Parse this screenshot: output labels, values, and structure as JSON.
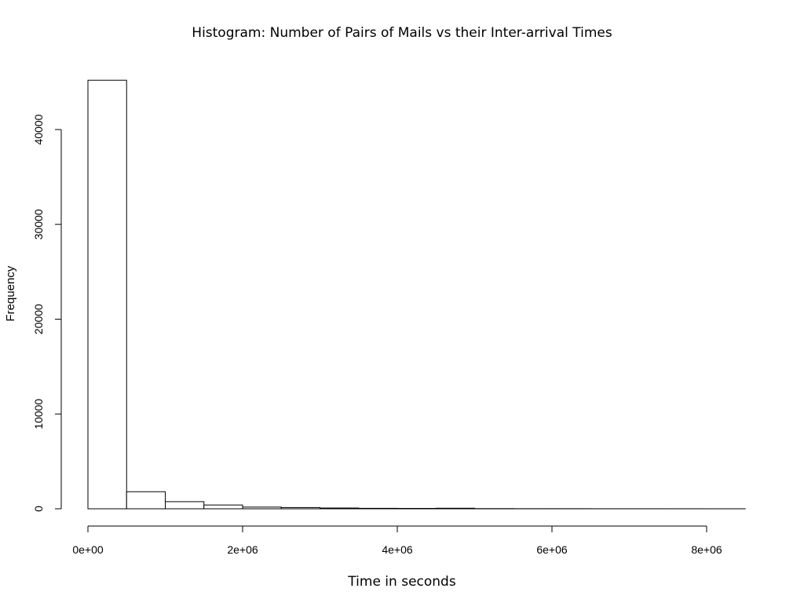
{
  "chart_data": {
    "type": "bar",
    "title": "Histogram: Number of Pairs of Mails vs their Inter-arrival Times",
    "xlabel": "Time in seconds",
    "ylabel": "Frequency",
    "xlim": [
      0,
      8500000
    ],
    "ylim": [
      0,
      45200
    ],
    "bin_width": 500000,
    "bins": [
      {
        "start": 0,
        "end": 500000,
        "count": 45200
      },
      {
        "start": 500000,
        "end": 1000000,
        "count": 1800
      },
      {
        "start": 1000000,
        "end": 1500000,
        "count": 750
      },
      {
        "start": 1500000,
        "end": 2000000,
        "count": 400
      },
      {
        "start": 2000000,
        "end": 2500000,
        "count": 180
      },
      {
        "start": 2500000,
        "end": 3000000,
        "count": 130
      },
      {
        "start": 3000000,
        "end": 3500000,
        "count": 80
      },
      {
        "start": 3500000,
        "end": 4000000,
        "count": 50
      },
      {
        "start": 4000000,
        "end": 4500000,
        "count": 40
      },
      {
        "start": 4500000,
        "end": 5000000,
        "count": 60
      },
      {
        "start": 5000000,
        "end": 5500000,
        "count": 20
      },
      {
        "start": 5500000,
        "end": 6000000,
        "count": 10
      },
      {
        "start": 6000000,
        "end": 6500000,
        "count": 10
      },
      {
        "start": 6500000,
        "end": 7000000,
        "count": 5
      },
      {
        "start": 7000000,
        "end": 7500000,
        "count": 5
      },
      {
        "start": 7500000,
        "end": 8000000,
        "count": 3
      },
      {
        "start": 8000000,
        "end": 8500000,
        "count": 2
      }
    ],
    "x_ticks": [
      {
        "value": 0,
        "label": "0e+00"
      },
      {
        "value": 2000000,
        "label": "2e+06"
      },
      {
        "value": 4000000,
        "label": "4e+06"
      },
      {
        "value": 6000000,
        "label": "6e+06"
      },
      {
        "value": 8000000,
        "label": "8e+06"
      }
    ],
    "y_ticks": [
      {
        "value": 0,
        "label": "0"
      },
      {
        "value": 10000,
        "label": "10000"
      },
      {
        "value": 20000,
        "label": "20000"
      },
      {
        "value": 30000,
        "label": "30000"
      },
      {
        "value": 40000,
        "label": "40000"
      }
    ],
    "grid": false,
    "legend": false
  }
}
